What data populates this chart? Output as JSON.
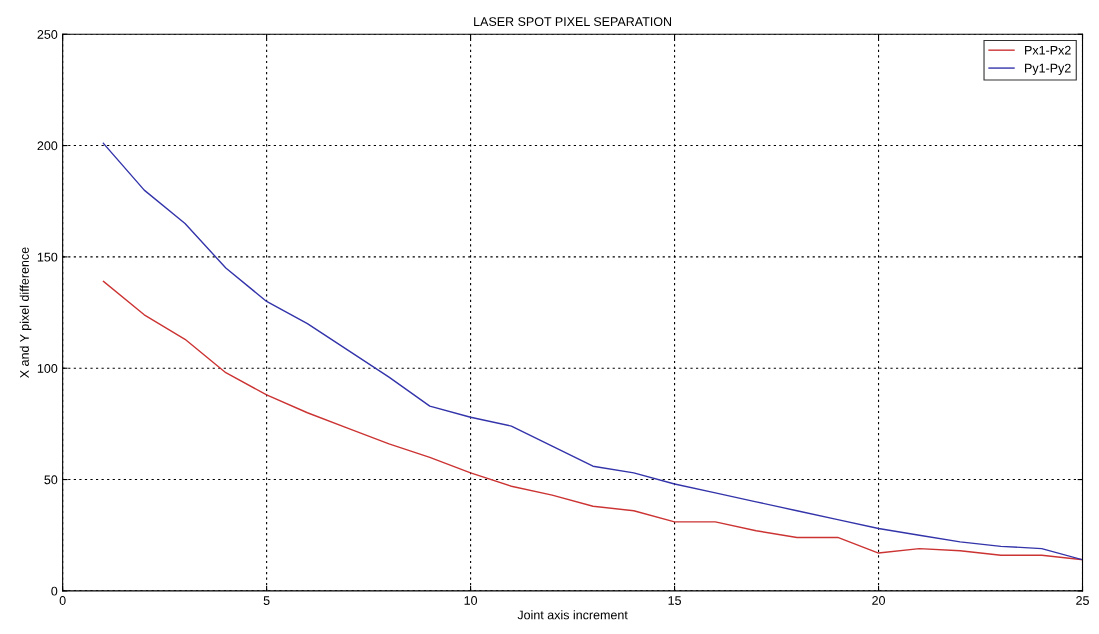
{
  "chart_data": {
    "type": "line",
    "title": "LASER SPOT PIXEL SEPARATION",
    "xlabel": "Joint axis increment",
    "ylabel": "X and Y pixel difference",
    "x": [
      1,
      2,
      3,
      4,
      5,
      6,
      7,
      8,
      9,
      10,
      11,
      12,
      13,
      14,
      15,
      16,
      17,
      18,
      19,
      20,
      21,
      22,
      23,
      24,
      25
    ],
    "series": [
      {
        "name": "Px1-Px2",
        "color": "#cc3333",
        "values": [
          139,
          124,
          113,
          98,
          88,
          80,
          73,
          66,
          60,
          53,
          47,
          43,
          38,
          36,
          31,
          31,
          27,
          24,
          24,
          17,
          19,
          18,
          16,
          16,
          14
        ]
      },
      {
        "name": "Py1-Py2",
        "color": "#3333aa",
        "values": [
          201,
          180,
          165,
          145,
          130,
          120,
          108,
          96,
          83,
          78,
          74,
          65,
          56,
          53,
          48,
          44,
          40,
          36,
          32,
          28,
          25,
          22,
          20,
          19,
          14
        ]
      }
    ],
    "xlim": [
      0,
      25
    ],
    "xticks": [
      0,
      5,
      10,
      15,
      20,
      25
    ],
    "ylim": [
      0,
      250
    ],
    "yticks": [
      0,
      50,
      100,
      150,
      200,
      250
    ],
    "grid": true,
    "legend": "top right",
    "marker": "none",
    "line_style": "solid"
  }
}
